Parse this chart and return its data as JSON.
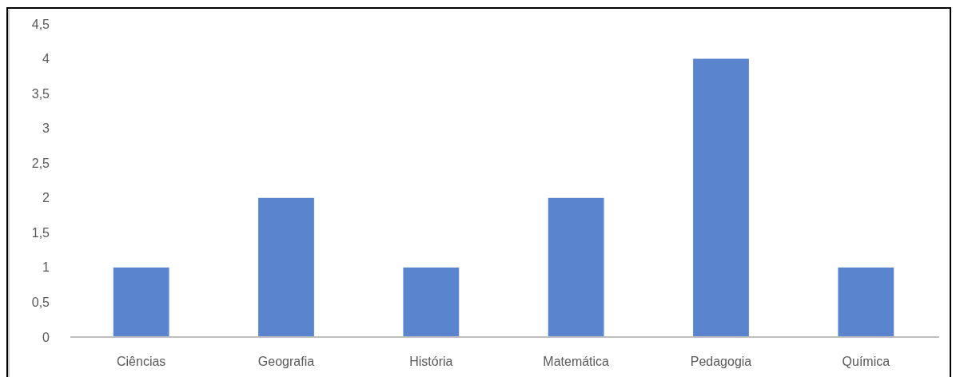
{
  "chart_data": {
    "type": "bar",
    "categories": [
      "Ciências",
      "Geografia",
      "História",
      "Matemática",
      "Pedagogia",
      "Química"
    ],
    "values": [
      1,
      2,
      1,
      2,
      4,
      1
    ],
    "color": "#5b84cf",
    "ylim": [
      0,
      4.5
    ],
    "yticks": [
      0,
      {
        "value": 0.5,
        "label": "0,5"
      },
      1,
      {
        "value": 1.5,
        "label": "1,5"
      },
      2,
      {
        "value": 2.5,
        "label": "2,5"
      },
      3,
      {
        "value": 3.5,
        "label": "3,5"
      },
      4,
      {
        "value": 4.5,
        "label": "4,5"
      }
    ],
    "grid": false,
    "legend": false
  }
}
